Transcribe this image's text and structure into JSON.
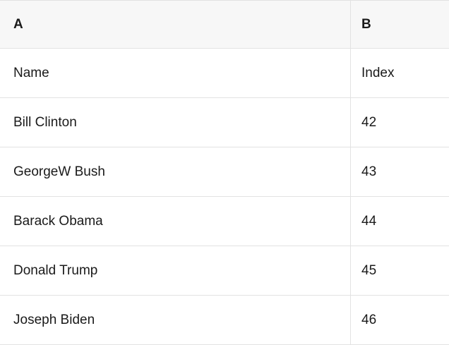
{
  "table": {
    "column_headers": [
      {
        "label": "A"
      },
      {
        "label": "B"
      }
    ],
    "rows": [
      {
        "a": "Name",
        "b": "Index"
      },
      {
        "a": "Bill Clinton",
        "b": "42"
      },
      {
        "a": "GeorgeW Bush",
        "b": "43"
      },
      {
        "a": "Barack Obama",
        "b": "44"
      },
      {
        "a": "Donald Trump",
        "b": "45"
      },
      {
        "a": "Joseph Biden",
        "b": "46"
      }
    ],
    "colors": {
      "header_bg": "#f7f7f7",
      "border": "#e2e2e2",
      "text": "#1a1a1a",
      "row_bg": "#ffffff"
    }
  }
}
